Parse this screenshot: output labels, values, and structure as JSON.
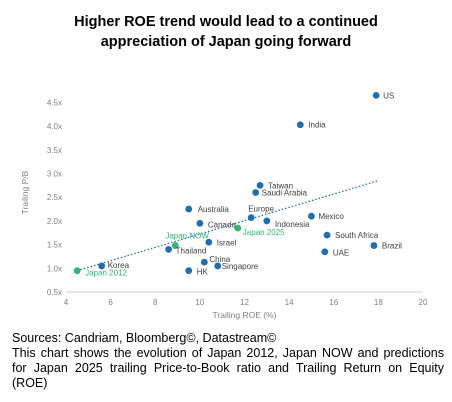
{
  "title_lines": [
    "Higher ROE trend would lead to a continued",
    "appreciation of Japan going forward"
  ],
  "footer": {
    "sources": "Sources: Candriam, Bloomberg©, Datastream©",
    "description": "This chart shows the evolution of Japan 2012, Japan NOW and predictions for Japan 2025 trailing Price-to-Book ratio and Trailing Return on Equity (ROE)"
  },
  "chart_data": {
    "type": "scatter",
    "title": "Higher ROE trend would lead to a continued appreciation of Japan going forward",
    "xlabel": "Trailing ROE (%)",
    "ylabel": "Trailing P/B",
    "xlim": [
      4,
      20
    ],
    "ylim": [
      0.5,
      4.7
    ],
    "xticks": [
      4,
      6,
      8,
      10,
      12,
      14,
      16,
      18,
      20
    ],
    "xtick_labels": [
      "4",
      "6",
      "8",
      "10",
      "12",
      "14",
      "16",
      "18",
      "20"
    ],
    "yticks": [
      0.5,
      1.0,
      1.5,
      2.0,
      2.5,
      3.0,
      3.5,
      4.0,
      4.5
    ],
    "ytick_labels": [
      "0.5x",
      "1.0x",
      "1.5x",
      "2.0x",
      "2.5x",
      "3.0x",
      "3.5x",
      "4.0x",
      "4.5x"
    ],
    "grid": false,
    "colors": {
      "countries": "#1f6fb0",
      "japan": "#2db872",
      "trend": "#1f6fb0",
      "axis": "#d0d0d0",
      "tick_text": "#7f7f7f"
    },
    "points": [
      {
        "label": "US",
        "x": 17.9,
        "y": 4.65,
        "group": "country"
      },
      {
        "label": "India",
        "x": 14.5,
        "y": 4.03,
        "group": "country"
      },
      {
        "label": "Taiwan",
        "x": 12.7,
        "y": 2.75,
        "group": "country"
      },
      {
        "label": "Saudi Arabia",
        "x": 12.5,
        "y": 2.6,
        "group": "country"
      },
      {
        "label": "Australia",
        "x": 9.5,
        "y": 2.25,
        "group": "country"
      },
      {
        "label": "Europe",
        "x": 12.3,
        "y": 2.07,
        "group": "country"
      },
      {
        "label": "Mexico",
        "x": 15.0,
        "y": 2.1,
        "group": "country"
      },
      {
        "label": "Indonesia",
        "x": 13.0,
        "y": 2.0,
        "group": "country"
      },
      {
        "label": "Canada",
        "x": 10.0,
        "y": 1.95,
        "group": "country"
      },
      {
        "label": "South Africa",
        "x": 15.7,
        "y": 1.7,
        "group": "country"
      },
      {
        "label": "Israel",
        "x": 10.4,
        "y": 1.55,
        "group": "country"
      },
      {
        "label": "Brazil",
        "x": 17.8,
        "y": 1.48,
        "group": "country"
      },
      {
        "label": "Thailand",
        "x": 8.6,
        "y": 1.4,
        "group": "country"
      },
      {
        "label": "UAE",
        "x": 15.6,
        "y": 1.35,
        "group": "country"
      },
      {
        "label": "China",
        "x": 10.2,
        "y": 1.13,
        "group": "country"
      },
      {
        "label": "Singapore",
        "x": 10.8,
        "y": 1.05,
        "group": "country"
      },
      {
        "label": "Korea",
        "x": 5.6,
        "y": 1.05,
        "group": "country"
      },
      {
        "label": "HK",
        "x": 9.5,
        "y": 0.95,
        "group": "country"
      },
      {
        "label": "Japan 2025",
        "x": 11.7,
        "y": 1.85,
        "group": "japan"
      },
      {
        "label": "Japan NOW",
        "x": 8.9,
        "y": 1.48,
        "group": "japan"
      },
      {
        "label": "Japan 2012",
        "x": 4.5,
        "y": 0.95,
        "group": "japan"
      }
    ],
    "trendline": {
      "x": [
        4.5,
        18.0
      ],
      "y": [
        0.95,
        2.85
      ],
      "style": "dotted"
    }
  }
}
